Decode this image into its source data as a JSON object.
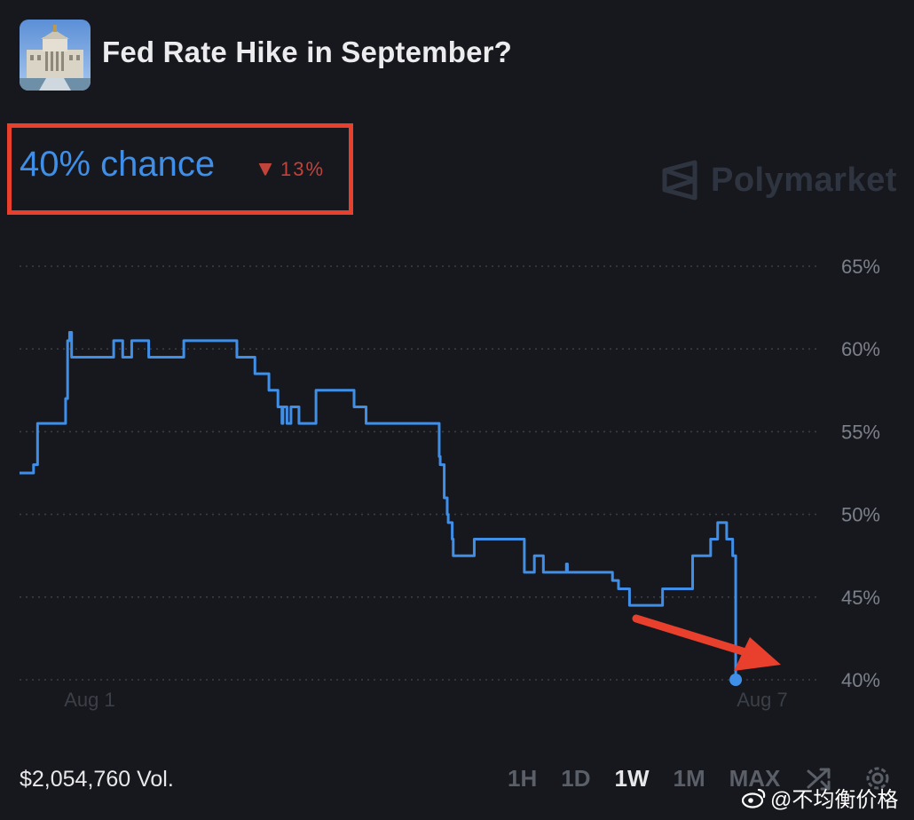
{
  "header": {
    "title": "Fed Rate Hike in September?",
    "thumbnail_icon": "federal-reserve-building-icon"
  },
  "summary": {
    "chance": "40% chance",
    "change": "13%",
    "change_direction": "down",
    "change_color": "#c0433c"
  },
  "brand": {
    "name": "Polymarket",
    "icon": "polymarket-logo-icon"
  },
  "chart_data": {
    "type": "line",
    "title": "",
    "xlabel": "",
    "ylabel": "",
    "x_tick_labels": [
      "Aug 1",
      "Aug 7"
    ],
    "y_tick_labels": [
      "65%",
      "60%",
      "55%",
      "50%",
      "45%",
      "40%"
    ],
    "y_ticks": [
      65,
      60,
      55,
      50,
      45,
      40
    ],
    "ylim": [
      40,
      65
    ],
    "grid": true,
    "line_color": "#3f8fe8",
    "series": [
      {
        "name": "",
        "x": [
          0,
          0.4,
          0.7,
          0.9,
          1.1,
          1.3,
          1.6,
          1.9,
          2.1,
          2.2,
          2.3,
          2.4,
          2.5,
          2.6,
          2.8,
          3.2,
          4.4,
          4.7,
          4.75,
          4.9,
          5.15,
          5.25,
          5.6,
          6.05,
          6.25,
          6.45,
          7.5,
          8.2,
          8.5,
          8.85,
          10.0,
          10.65,
          10.7,
          10.85,
          11.05,
          11.25,
          11.5,
          11.75,
          11.95,
          12.1,
          12.45,
          12.55,
          12.9,
          13.1,
          13.15,
          13.35,
          13.55,
          13.7,
          13.95,
          14.2,
          14.8,
          14.95,
          15.05,
          15.55,
          16.1,
          16.7,
          17.3,
          18.2,
          18.5,
          18.6,
          19.3,
          19.7,
          20.0,
          20.15,
          20.7,
          20.95,
          21.0,
          21.2,
          21.35,
          21.4,
          21.6,
          21.65,
          22.3,
          22.5,
          22.7,
          23.1,
          23.5,
          24.3,
          24.55,
          25.2,
          25.35,
          25.7,
          26.15,
          26.6,
          27.05,
          27.3,
          27.35,
          27.85,
          29.3,
          29.6,
          29.9,
          30.1,
          30.45,
          31.75,
          32.1,
          32.35,
          32.7,
          33.6,
          33.8,
          34.1,
          34.5,
          34.85,
          35.1,
          35.3,
          35.6,
          35.75
        ],
        "y": [
          52.5,
          52.5,
          53,
          55.5,
          55.5,
          55.5,
          55.5,
          55.5,
          55.5,
          55.5,
          57,
          60.5,
          61,
          59.5,
          59.5,
          59.5,
          59.5,
          60.5,
          60.5,
          60.5,
          59.5,
          59.5,
          60.5,
          60.5,
          60.5,
          59.5,
          59.5,
          60.5,
          60.5,
          60.5,
          60.5,
          60.5,
          60.5,
          59.5,
          59.5,
          59.5,
          59.5,
          58.5,
          58.5,
          58.5,
          57.5,
          57.5,
          56.5,
          55.5,
          56.5,
          55.5,
          56.5,
          56.5,
          55.5,
          55.5,
          57.5,
          57.5,
          57.5,
          57.5,
          57.5,
          56.5,
          55.5,
          55.5,
          55.5,
          55.5,
          55.5,
          55.5,
          55.5,
          55.5,
          55.5,
          53.5,
          53,
          51,
          50,
          49.5,
          48.5,
          47.5,
          47.5,
          47.5,
          48.5,
          48.5,
          48.5,
          48.5,
          48.5,
          46.5,
          46.5,
          47.5,
          46.5,
          46.5,
          46.5,
          47,
          46.5,
          46.5,
          46.5,
          46,
          45.5,
          45.5,
          44.5,
          44.5,
          45.5,
          45.5,
          45.5,
          47.5,
          47.5,
          47.5,
          48.5,
          49.5,
          49.5,
          48.5,
          47.5,
          40
        ]
      }
    ]
  },
  "footer": {
    "volume": "$2,054,760 Vol.",
    "ranges": [
      "1H",
      "1D",
      "1W",
      "1M",
      "MAX"
    ],
    "active_range": "1W",
    "tools": [
      "shuffle-icon",
      "settings-gear-icon"
    ]
  },
  "watermark": {
    "text": "@不均衡价格",
    "icon": "weibo-logo-icon"
  },
  "annotation": {
    "arrow_color": "#e8402c",
    "box_color": "#e8402c"
  }
}
